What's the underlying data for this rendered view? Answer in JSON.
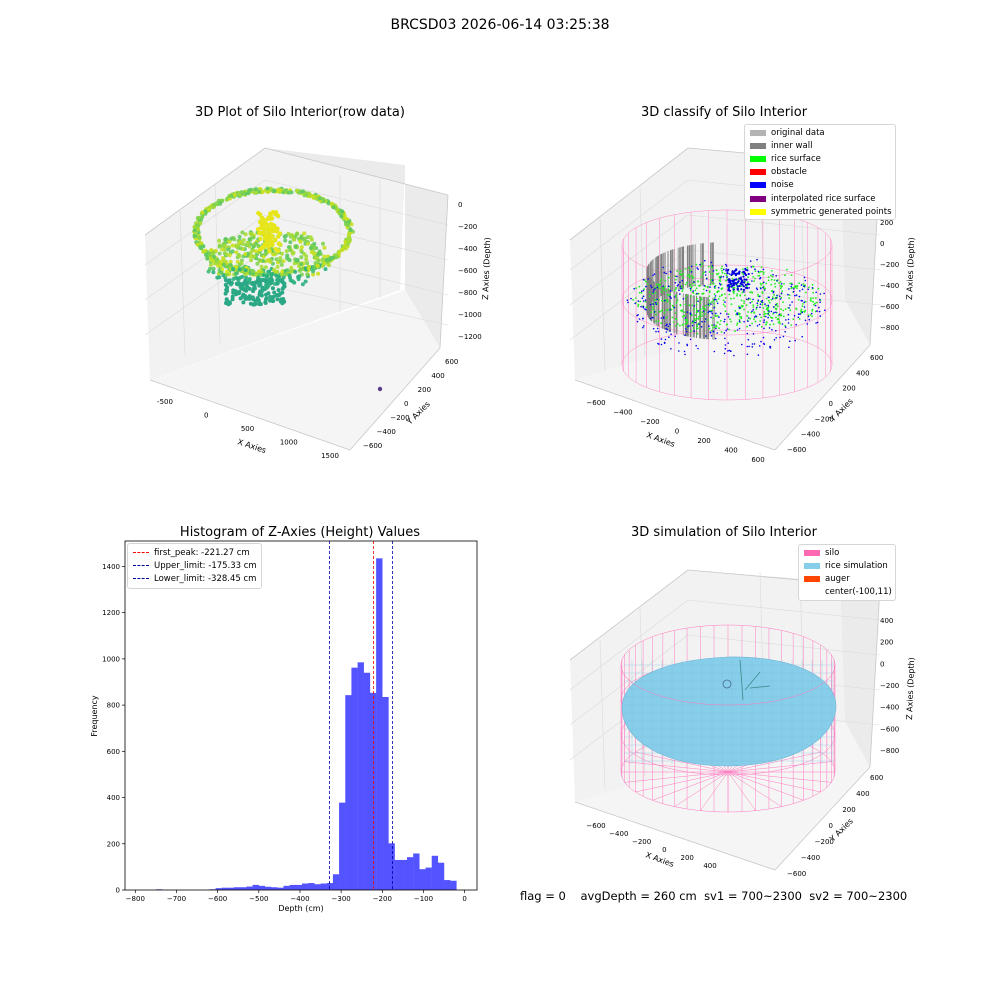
{
  "main_title": "BRCSD03 2026-06-14 03:25:38",
  "footer": {
    "flag": "flag = 0",
    "avg": "avgDepth = 260 cm",
    "sv1": "sv1 = 700~2300",
    "sv2": "sv2 = 700~2300"
  },
  "colors": {
    "original": "#b3b3b3",
    "inner_wall": "#808080",
    "rice_surface": "#00ff00",
    "obstacle": "#ff0000",
    "noise": "#0000ff",
    "interpolated": "#800080",
    "symmetric": "#ffff00",
    "silo": "#ff69b4",
    "rice_sim": "#87ceeb",
    "auger": "#ff4500",
    "hist_bar": "#4a4aff"
  },
  "chart_data": [
    {
      "type": "scatter3d",
      "title": "3D Plot of Silo Interior(row data)",
      "xlabel": "X Axies",
      "ylabel": "Y Axies",
      "zlabel": "Z Axies (Depth)",
      "x_ticks": [
        "-500",
        "0",
        "500",
        "1000",
        "1500"
      ],
      "y_ticks": [
        "600",
        "400",
        "200",
        "0",
        "−200",
        "−400",
        "−600"
      ],
      "z_ticks": [
        "0",
        "−200",
        "−400",
        "−600",
        "−800",
        "−1000",
        "−1200"
      ],
      "xlim": [
        -700,
        1600
      ],
      "ylim": [
        -700,
        700
      ],
      "zlim": [
        -1250,
        50
      ]
    },
    {
      "type": "scatter3d",
      "title": "3D classify of Silo Interior",
      "xlabel": "X Axies",
      "ylabel": "Y Axies",
      "zlabel": "Z Axies (Depth)",
      "x_ticks": [
        "−600",
        "−400",
        "−200",
        "0",
        "200",
        "400",
        "600"
      ],
      "y_ticks": [
        "600",
        "400",
        "200",
        "0",
        "−200",
        "−400",
        "−600"
      ],
      "z_ticks": [
        "200",
        "0",
        "−200",
        "−400",
        "−600",
        "−800"
      ],
      "legend": [
        "original data",
        "inner wall",
        "rice surface",
        "obstacle",
        "noise",
        "interpolated rice surface",
        "symmetric generated points"
      ]
    },
    {
      "type": "bar",
      "title": "Histogram of Z-Axies (Height) Values",
      "xlabel": "Depth (cm)",
      "ylabel": "Frequency",
      "x_ticks": [
        "−800",
        "−700",
        "−600",
        "−500",
        "−400",
        "−300",
        "−200",
        "−100",
        "0"
      ],
      "y_ticks": [
        "0",
        "200",
        "400",
        "600",
        "800",
        "1000",
        "1200",
        "1400"
      ],
      "xlim": [
        -825,
        30
      ],
      "ylim": [
        0,
        1510
      ],
      "bin_width": 15.4,
      "bins": [
        {
          "x": -750,
          "y": 3
        },
        {
          "x": -620,
          "y": 3
        },
        {
          "x": -605,
          "y": 8
        },
        {
          "x": -590,
          "y": 10
        },
        {
          "x": -575,
          "y": 10
        },
        {
          "x": -560,
          "y": 12
        },
        {
          "x": -545,
          "y": 12
        },
        {
          "x": -530,
          "y": 15
        },
        {
          "x": -515,
          "y": 22
        },
        {
          "x": -500,
          "y": 18
        },
        {
          "x": -485,
          "y": 14
        },
        {
          "x": -470,
          "y": 12
        },
        {
          "x": -455,
          "y": 10
        },
        {
          "x": -440,
          "y": 18
        },
        {
          "x": -425,
          "y": 22
        },
        {
          "x": -410,
          "y": 22
        },
        {
          "x": -395,
          "y": 28
        },
        {
          "x": -380,
          "y": 30
        },
        {
          "x": -365,
          "y": 25
        },
        {
          "x": -350,
          "y": 28
        },
        {
          "x": -335,
          "y": 30
        },
        {
          "x": -320,
          "y": 68
        },
        {
          "x": -305,
          "y": 378
        },
        {
          "x": -290,
          "y": 843
        },
        {
          "x": -275,
          "y": 962
        },
        {
          "x": -260,
          "y": 985
        },
        {
          "x": -245,
          "y": 940
        },
        {
          "x": -230,
          "y": 853
        },
        {
          "x": -215,
          "y": 1435
        },
        {
          "x": -200,
          "y": 835
        },
        {
          "x": -185,
          "y": 202
        },
        {
          "x": -170,
          "y": 130
        },
        {
          "x": -155,
          "y": 130
        },
        {
          "x": -140,
          "y": 142
        },
        {
          "x": -125,
          "y": 158
        },
        {
          "x": -110,
          "y": 90
        },
        {
          "x": -95,
          "y": 97
        },
        {
          "x": -80,
          "y": 148
        },
        {
          "x": -65,
          "y": 118
        },
        {
          "x": -50,
          "y": 43
        },
        {
          "x": -35,
          "y": 40
        }
      ],
      "vlines": [
        {
          "label": "first_peak: -221.27 cm",
          "x": -221.27,
          "color": "#ff0000"
        },
        {
          "label": "Upper_limit: -175.33 cm",
          "x": -175.33,
          "color": "#0000aa"
        },
        {
          "label": "Lower_limit: -328.45 cm",
          "x": -328.45,
          "color": "#0000aa"
        }
      ]
    },
    {
      "type": "surface3d",
      "title": "3D simulation of Silo Interior",
      "xlabel": "X Axies",
      "ylabel": "Y Axies",
      "zlabel": "Z Axies (Depth)",
      "x_ticks": [
        "−600",
        "−400",
        "−200",
        "0",
        "200",
        "400"
      ],
      "y_ticks": [
        "600",
        "400",
        "200",
        "0",
        "−200",
        "−400",
        "−600"
      ],
      "z_ticks": [
        "400",
        "200",
        "0",
        "−200",
        "−400",
        "−600",
        "−800"
      ],
      "legend": [
        "silo",
        "rice simulation",
        "auger",
        "center(-100,11)"
      ]
    }
  ]
}
